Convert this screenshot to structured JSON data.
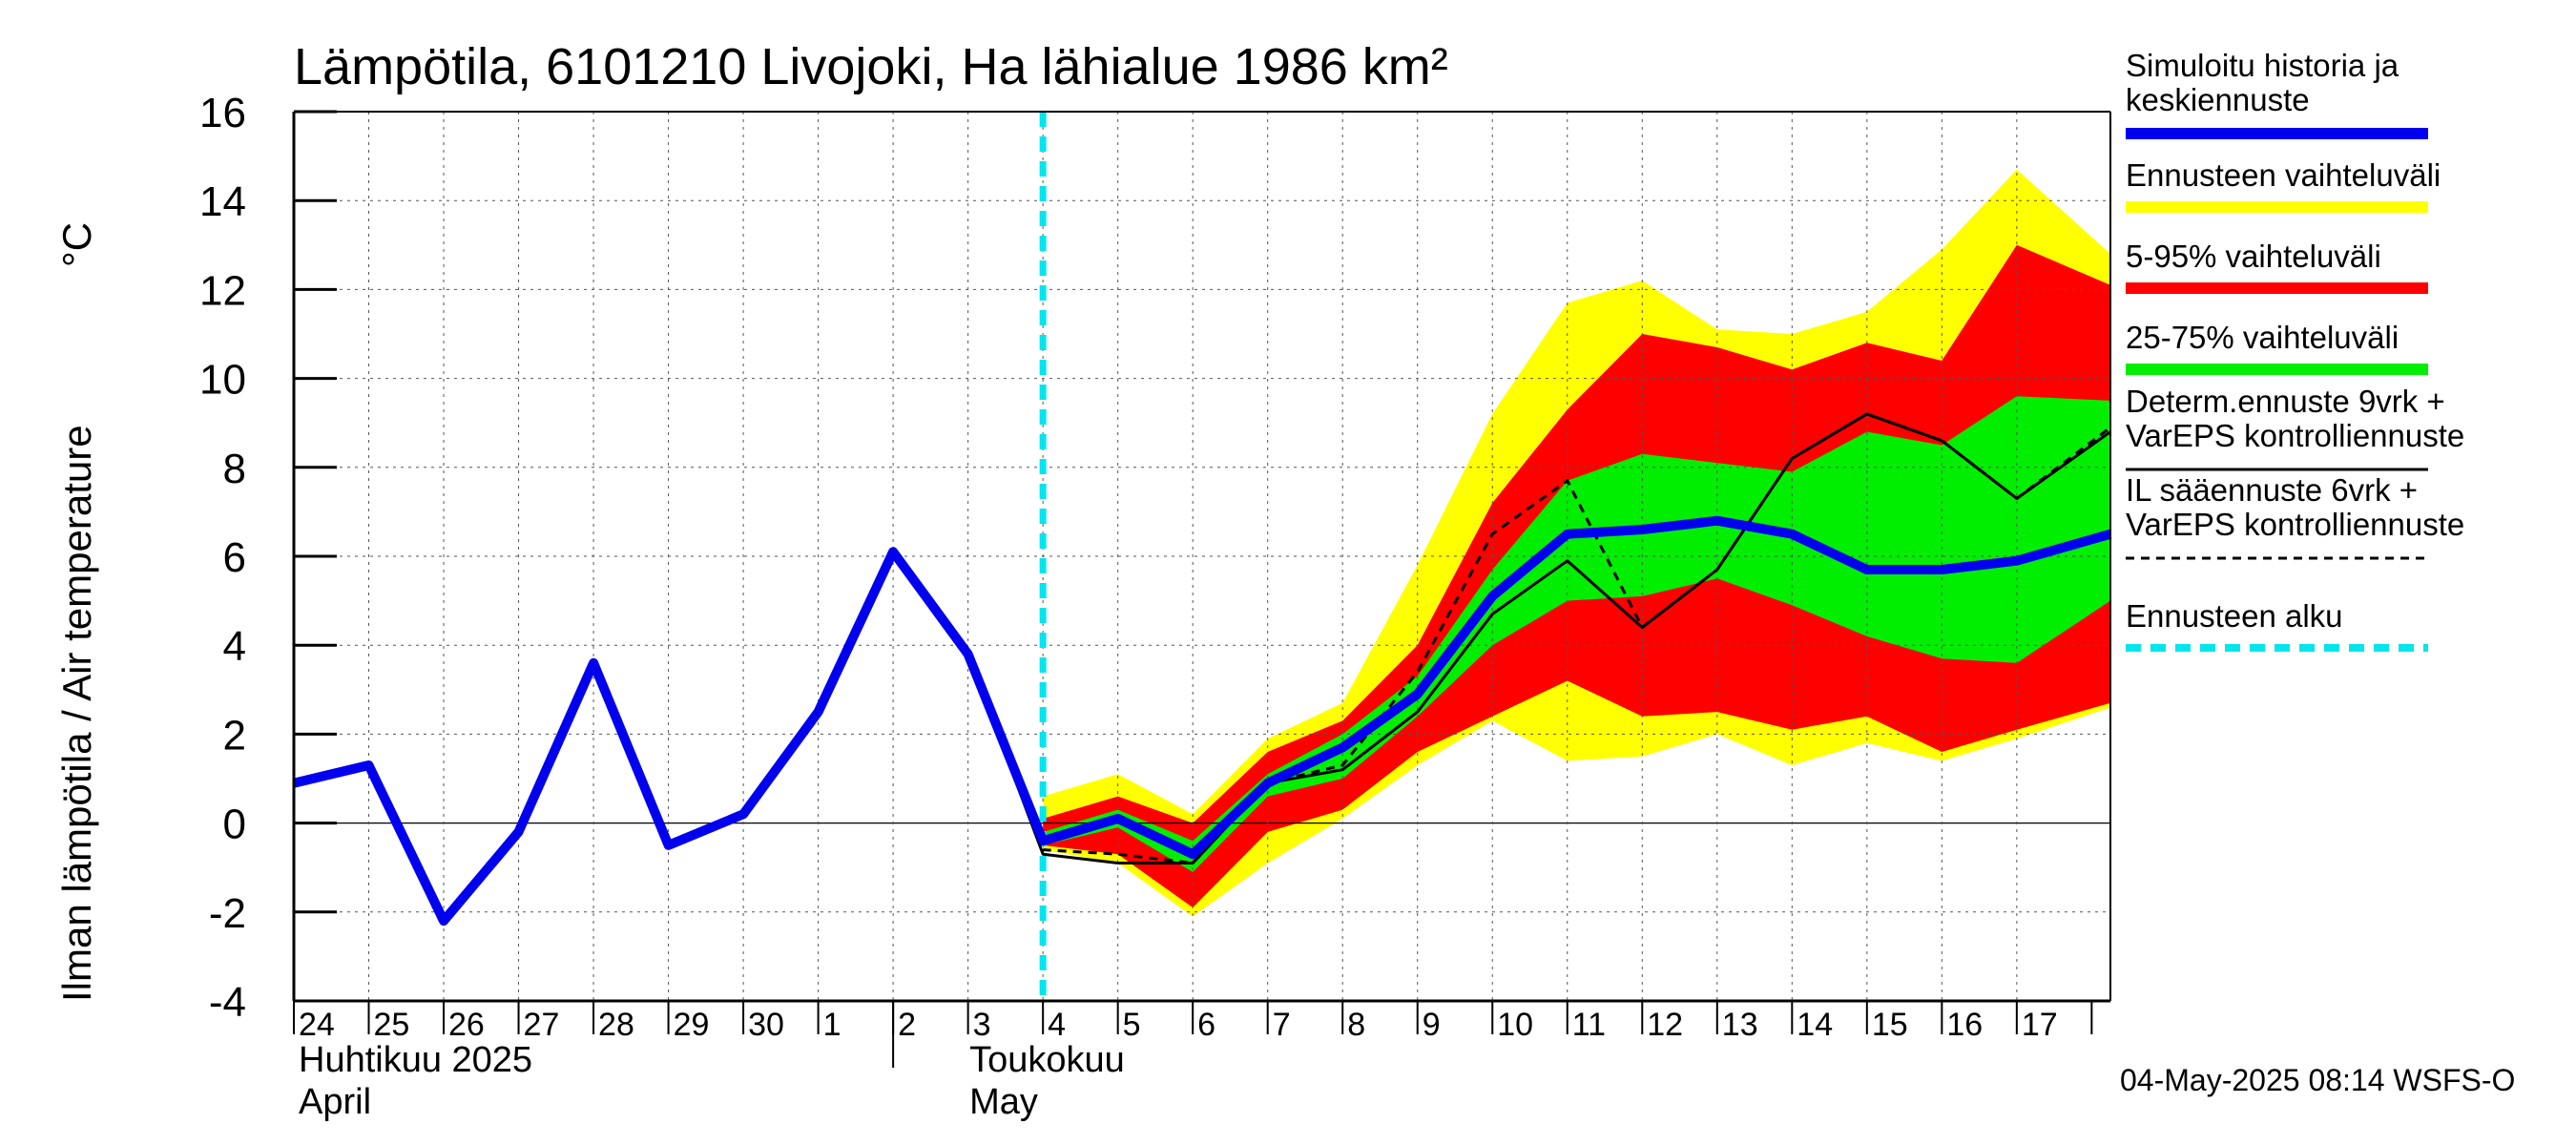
{
  "chart_data": {
    "type": "area",
    "title": "Lämpötila, 6101210 Livojoki, Ha lähialue 1986 km²",
    "ylabel": "Ilman lämpötila / Air temperature",
    "yunit": "°C",
    "ylim": [
      -4,
      16
    ],
    "yticks": [
      -4,
      -2,
      0,
      2,
      4,
      6,
      8,
      10,
      12,
      14,
      16
    ],
    "xlim": [
      0,
      24.25
    ],
    "day_labels": [
      "24",
      "25",
      "26",
      "27",
      "28",
      "29",
      "30",
      "1",
      "2",
      "3",
      "4",
      "5",
      "6",
      "7",
      "8",
      "9",
      "10",
      "11",
      "12",
      "13",
      "14",
      "15",
      "16",
      "17"
    ],
    "months": [
      {
        "line1": "Huhtikuu  2025",
        "line2": "April",
        "start_index": 0
      },
      {
        "line1": "Toukokuu",
        "line2": "May",
        "start_index": 8
      }
    ],
    "forecast_start_x": 10.0,
    "band_x": [
      10,
      11,
      12,
      13,
      14,
      15,
      16,
      17,
      18,
      19,
      20,
      21,
      22,
      23,
      24.25
    ],
    "bands": {
      "full_range": {
        "upper": [
          0.6,
          1.1,
          0.2,
          1.9,
          2.7,
          5.8,
          9.2,
          11.7,
          12.2,
          11.1,
          11.0,
          11.5,
          12.9,
          14.7,
          12.8
        ],
        "lower": [
          -0.6,
          -0.9,
          -2.1,
          -0.9,
          0.1,
          1.3,
          2.3,
          1.4,
          1.5,
          2.0,
          1.3,
          1.8,
          1.4,
          1.9,
          2.6
        ]
      },
      "p5_95": {
        "upper": [
          0.1,
          0.6,
          0.0,
          1.6,
          2.3,
          4.0,
          7.2,
          9.3,
          11.0,
          10.7,
          10.2,
          10.8,
          10.4,
          13.0,
          12.1
        ],
        "lower": [
          -0.5,
          -0.7,
          -1.9,
          -0.2,
          0.3,
          1.6,
          2.4,
          3.2,
          2.4,
          2.5,
          2.1,
          2.4,
          1.6,
          2.1,
          2.7
        ]
      },
      "p25_75": {
        "upper": [
          -0.2,
          0.3,
          -0.4,
          1.1,
          2.0,
          3.3,
          5.7,
          7.7,
          8.3,
          8.1,
          7.9,
          8.8,
          8.5,
          9.6,
          9.5
        ],
        "lower": [
          -0.5,
          -0.1,
          -1.1,
          0.6,
          1.0,
          2.4,
          4.0,
          5.0,
          5.1,
          5.5,
          4.9,
          4.2,
          3.7,
          3.6,
          5.0
        ]
      }
    },
    "series": [
      {
        "name": "Simuloitu historia ja keskiennuste",
        "color": "#0000ee",
        "x": [
          0,
          1,
          2,
          3,
          4,
          5,
          6,
          7,
          8,
          9,
          10,
          11,
          12,
          13,
          14,
          15,
          16,
          17,
          18,
          19,
          20,
          21,
          22,
          23,
          24.25
        ],
        "values": [
          0.9,
          1.3,
          -2.2,
          -0.2,
          3.6,
          -0.5,
          0.2,
          2.5,
          6.1,
          3.8,
          -0.4,
          0.1,
          -0.7,
          0.9,
          1.7,
          2.9,
          5.1,
          6.5,
          6.6,
          6.8,
          6.5,
          5.7,
          5.7,
          5.9,
          6.5
        ]
      },
      {
        "name": "Determ.ennuste 9vrk + VarEPS kontrolliennuste",
        "color": "#000000",
        "x": [
          8,
          9,
          10,
          11,
          12,
          13,
          14,
          15,
          16,
          17,
          18,
          19,
          20,
          21,
          22,
          23,
          24.25
        ],
        "values": [
          6.1,
          3.8,
          -0.7,
          -0.9,
          -0.9,
          0.9,
          1.2,
          2.5,
          4.7,
          5.9,
          4.4,
          5.7,
          8.2,
          9.2,
          8.6,
          7.3,
          8.8
        ]
      },
      {
        "name": "IL sääennuste 6vrk + VarEPS kontrolliennuste",
        "color": "#000000",
        "dashed": true,
        "x": [
          8,
          9,
          10,
          11,
          12,
          13,
          14,
          15,
          16,
          17,
          18,
          19,
          20,
          21,
          22,
          23,
          24.25
        ],
        "values": [
          6.1,
          3.8,
          -0.6,
          -0.7,
          -0.9,
          0.9,
          1.3,
          3.4,
          6.5,
          7.7,
          4.4,
          5.7,
          8.2,
          9.2,
          8.6,
          7.3,
          8.9
        ]
      }
    ],
    "legend": [
      {
        "line1": "Simuloitu historia ja",
        "line2": "keskiennuste",
        "color": "#0000ee",
        "style": "thick"
      },
      {
        "line1": "Ennusteen vaihteluväli",
        "line2": "",
        "color": "#ffff00",
        "style": "thick"
      },
      {
        "line1": "5-95% vaihteluväli",
        "line2": "",
        "color": "#ff0000",
        "style": "thick"
      },
      {
        "line1": "25-75% vaihteluväli",
        "line2": "",
        "color": "#00ee00",
        "style": "thick"
      },
      {
        "line1": "Determ.ennuste 9vrk  +",
        "line2": "VarEPS kontrolliennuste",
        "color": "#000000",
        "style": "thin"
      },
      {
        "line1": "IL sääennuste 6vrk  +",
        "line2": "  VarEPS kontrolliennuste",
        "color": "#000000",
        "style": "dashed"
      },
      {
        "line1": "Ennusteen alku",
        "line2": "",
        "color": "#00e5ee",
        "style": "cyan-dashed"
      }
    ],
    "footer": "04-May-2025 08:14 WSFS-O"
  }
}
